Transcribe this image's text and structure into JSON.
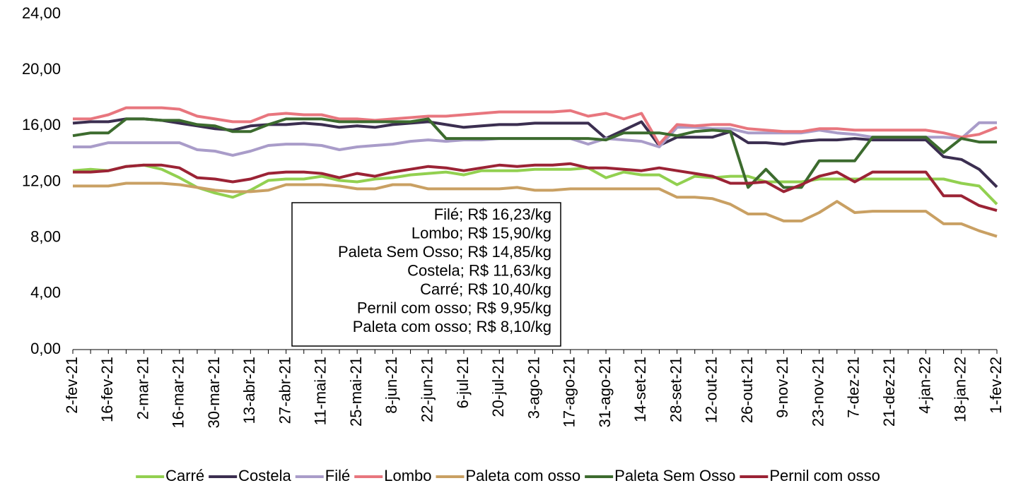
{
  "chart_data": {
    "type": "line",
    "categories": [
      "2-fev-21",
      null,
      "16-fev-21",
      null,
      "2-mar-21",
      null,
      "16-mar-21",
      null,
      "30-mar-21",
      null,
      "13-abr-21",
      null,
      "27-abr-21",
      null,
      "11-mai-21",
      null,
      "25-mai-21",
      null,
      "8-jun-21",
      null,
      "22-jun-21",
      null,
      "6-jul-21",
      null,
      "20-jul-21",
      null,
      "3-ago-21",
      null,
      "17-ago-21",
      null,
      "31-ago-21",
      null,
      "14-set-21",
      null,
      "28-set-21",
      null,
      "12-out-21",
      null,
      "26-out-21",
      null,
      "9-nov-21",
      null,
      "23-nov-21",
      null,
      "7-dez-21",
      null,
      "21-dez-21",
      null,
      "4-jan-22",
      null,
      "18-jan-22",
      null,
      "1-fev-22"
    ],
    "series": [
      {
        "name": "Carré",
        "color": "#92d050",
        "values": [
          12.8,
          12.9,
          12.8,
          13.1,
          13.2,
          12.9,
          12.3,
          11.6,
          11.2,
          10.9,
          11.4,
          12.1,
          12.2,
          12.2,
          12.4,
          12.1,
          12.0,
          12.2,
          12.3,
          12.5,
          12.6,
          12.7,
          12.5,
          12.8,
          12.8,
          12.8,
          12.9,
          12.9,
          12.9,
          13.0,
          12.3,
          12.7,
          12.5,
          12.5,
          11.8,
          12.4,
          12.3,
          12.4,
          12.4,
          12.0,
          12.0,
          12.0,
          12.2,
          12.2,
          12.2,
          12.2,
          12.2,
          12.2,
          12.2,
          12.2,
          11.9,
          11.7,
          10.4
        ]
      },
      {
        "name": "Costela",
        "color": "#3b2e50",
        "values": [
          16.2,
          16.3,
          16.3,
          16.5,
          16.5,
          16.4,
          16.2,
          16.0,
          15.8,
          15.7,
          16.0,
          16.1,
          16.1,
          16.2,
          16.1,
          15.9,
          16.0,
          15.9,
          16.1,
          16.2,
          16.3,
          16.1,
          15.9,
          16.0,
          16.1,
          16.1,
          16.2,
          16.2,
          16.2,
          16.2,
          15.1,
          15.7,
          16.3,
          14.6,
          15.2,
          15.2,
          15.2,
          15.6,
          14.8,
          14.8,
          14.7,
          14.9,
          15.0,
          15.0,
          15.1,
          15.0,
          15.0,
          15.0,
          15.0,
          13.8,
          13.6,
          12.9,
          11.63
        ]
      },
      {
        "name": "Filé",
        "color": "#a99cc9",
        "values": [
          14.5,
          14.5,
          14.8,
          14.8,
          14.8,
          14.8,
          14.8,
          14.3,
          14.2,
          13.9,
          14.2,
          14.6,
          14.7,
          14.7,
          14.6,
          14.3,
          14.5,
          14.6,
          14.7,
          14.9,
          15.0,
          14.9,
          15.0,
          15.0,
          15.1,
          15.1,
          15.1,
          15.1,
          15.1,
          14.7,
          15.1,
          15.0,
          14.9,
          14.5,
          15.9,
          15.9,
          15.8,
          15.8,
          15.5,
          15.5,
          15.5,
          15.5,
          15.7,
          15.5,
          15.4,
          15.2,
          15.2,
          15.2,
          15.2,
          15.2,
          15.1,
          16.23,
          16.23
        ]
      },
      {
        "name": "Lombo",
        "color": "#e8767e",
        "values": [
          16.5,
          16.5,
          16.8,
          17.3,
          17.3,
          17.3,
          17.2,
          16.7,
          16.5,
          16.3,
          16.3,
          16.8,
          16.9,
          16.8,
          16.8,
          16.5,
          16.5,
          16.4,
          16.5,
          16.6,
          16.7,
          16.7,
          16.8,
          16.9,
          17.0,
          17.0,
          17.0,
          17.0,
          17.1,
          16.7,
          16.9,
          16.5,
          16.9,
          14.7,
          16.1,
          16.0,
          16.1,
          16.1,
          15.8,
          15.7,
          15.6,
          15.6,
          15.8,
          15.8,
          15.7,
          15.7,
          15.7,
          15.7,
          15.7,
          15.5,
          15.2,
          15.4,
          15.9
        ]
      },
      {
        "name": "Paleta com osso",
        "color": "#c9a063",
        "values": [
          11.7,
          11.7,
          11.7,
          11.9,
          11.9,
          11.9,
          11.8,
          11.6,
          11.4,
          11.3,
          11.3,
          11.4,
          11.8,
          11.8,
          11.8,
          11.7,
          11.5,
          11.5,
          11.8,
          11.8,
          11.5,
          11.5,
          11.5,
          11.5,
          11.5,
          11.6,
          11.4,
          11.4,
          11.5,
          11.5,
          11.5,
          11.5,
          11.5,
          11.5,
          10.9,
          10.9,
          10.8,
          10.4,
          9.7,
          9.7,
          9.2,
          9.2,
          9.8,
          10.6,
          9.8,
          9.9,
          9.9,
          9.9,
          9.9,
          9.0,
          9.0,
          8.5,
          8.1
        ]
      },
      {
        "name": "Paleta Sem Osso",
        "color": "#3c6b2e",
        "values": [
          15.3,
          15.5,
          15.5,
          16.5,
          16.5,
          16.4,
          16.4,
          16.1,
          16.0,
          15.6,
          15.6,
          16.1,
          16.5,
          16.5,
          16.5,
          16.3,
          16.3,
          16.3,
          16.3,
          16.3,
          16.5,
          15.1,
          15.1,
          15.1,
          15.1,
          15.1,
          15.1,
          15.1,
          15.1,
          15.1,
          15.0,
          15.5,
          15.5,
          15.5,
          15.3,
          15.6,
          15.7,
          15.6,
          11.6,
          12.9,
          11.6,
          11.6,
          13.5,
          13.5,
          13.5,
          15.2,
          15.2,
          15.2,
          15.2,
          14.1,
          15.1,
          14.85,
          14.85
        ]
      },
      {
        "name": "Pernil com osso",
        "color": "#9b2335",
        "values": [
          12.7,
          12.7,
          12.8,
          13.1,
          13.2,
          13.2,
          13.0,
          12.3,
          12.2,
          12.0,
          12.2,
          12.6,
          12.7,
          12.7,
          12.6,
          12.3,
          12.6,
          12.4,
          12.7,
          12.9,
          13.1,
          13.0,
          12.8,
          13.0,
          13.2,
          13.1,
          13.2,
          13.2,
          13.3,
          13.0,
          13.0,
          12.9,
          12.8,
          13.0,
          12.8,
          12.6,
          12.4,
          11.9,
          11.9,
          12.0,
          11.3,
          11.8,
          12.4,
          12.7,
          12.0,
          12.7,
          12.7,
          12.7,
          12.7,
          11.0,
          11.0,
          10.3,
          9.95
        ]
      }
    ],
    "ylim": [
      0,
      24
    ],
    "yticks": [
      {
        "value": 0,
        "label": "0,00"
      },
      {
        "value": 4,
        "label": "4,00"
      },
      {
        "value": 8,
        "label": "8,00"
      },
      {
        "value": 12,
        "label": "12,00"
      },
      {
        "value": 16,
        "label": "16,00"
      },
      {
        "value": 20,
        "label": "20,00"
      },
      {
        "value": 24,
        "label": "24,00"
      }
    ],
    "grid": false,
    "legend": "bottom",
    "annotations": [
      "Filé; R$ 16,23/kg",
      "Lombo; R$ 15,90/kg",
      "Paleta Sem Osso; R$ 14,85/kg",
      "Costela; R$ 11,63/kg",
      "Carré; R$ 10,40/kg",
      "Pernil com osso; R$ 9,95/kg",
      "Paleta com osso; R$ 8,10/kg"
    ]
  }
}
